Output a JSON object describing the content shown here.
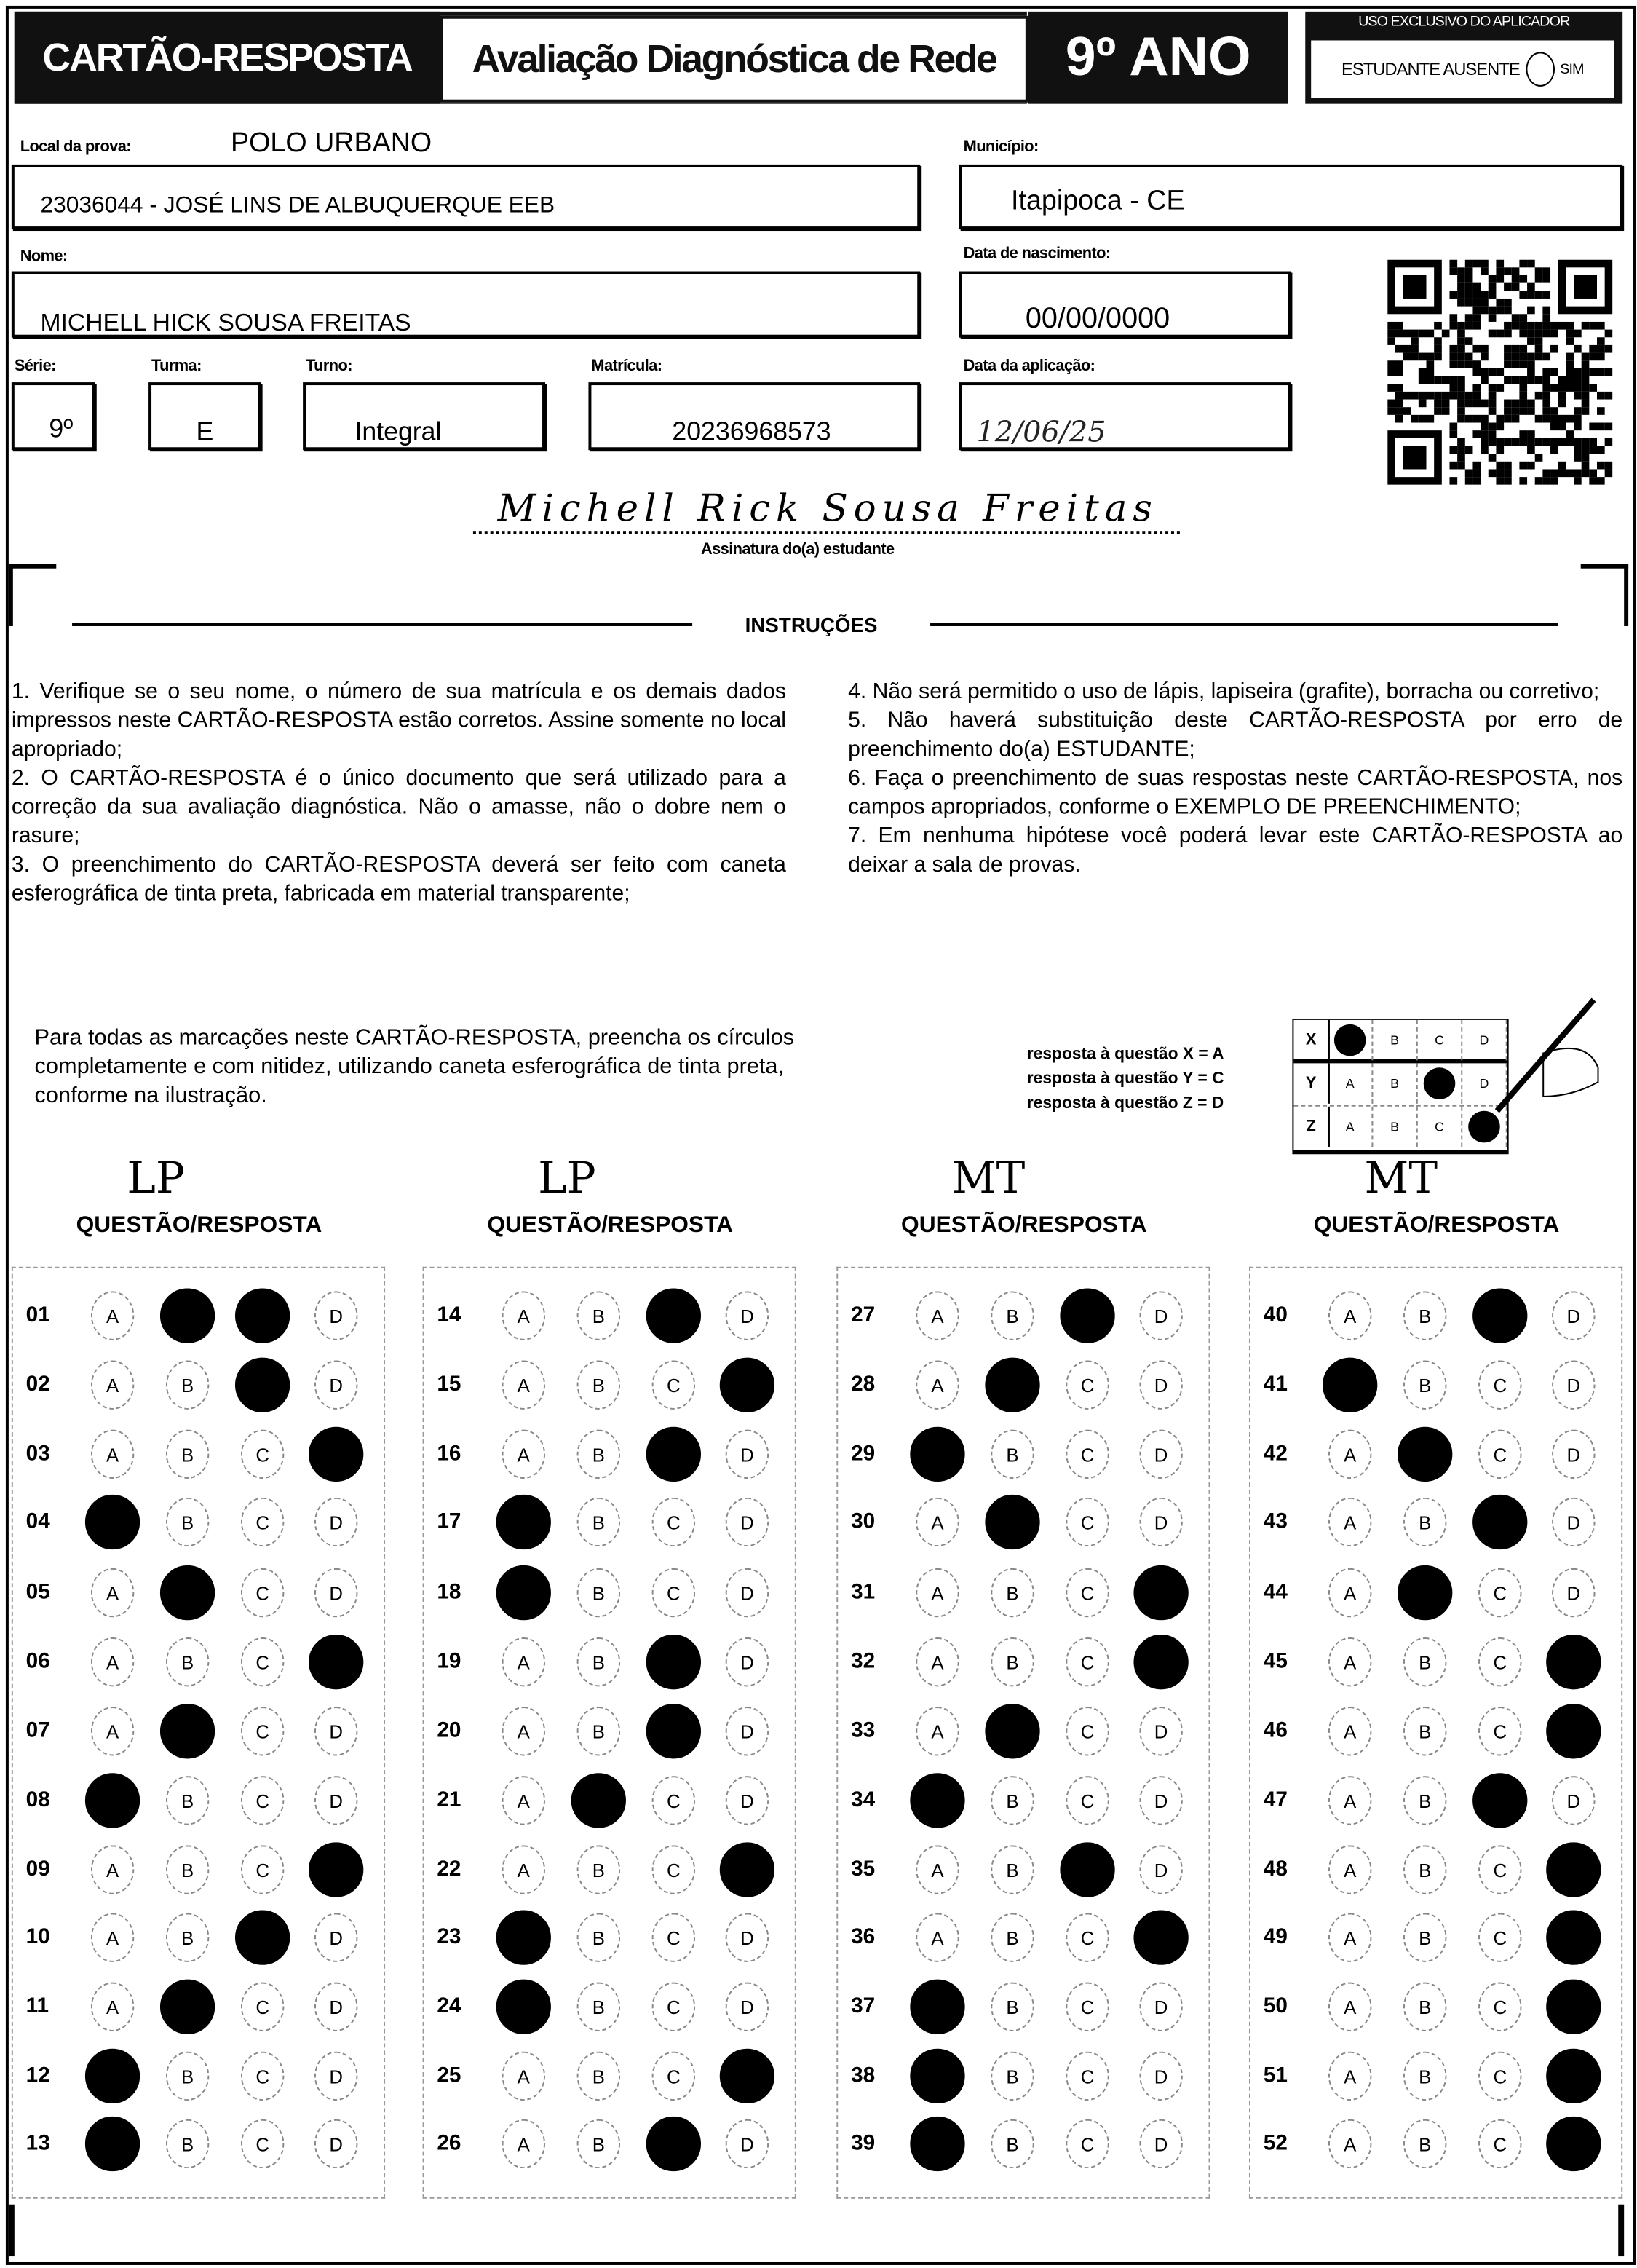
{
  "header": {
    "card_title": "CARTÃO-RESPOSTA",
    "exam_title": "Avaliação Diagnóstica de Rede",
    "grade": "9º ANO",
    "applicator_label": "USO EXCLUSIVO DO APLICADOR",
    "absent_label": "ESTUDANTE AUSENTE",
    "absent_option": "SIM"
  },
  "fields": {
    "local_label": "Local da prova:",
    "local_value": "POLO URBANO",
    "school": "23036044 - JOSÉ LINS DE ALBUQUERQUE EEB",
    "municipio_label": "Município:",
    "municipio": "Itapipoca - CE",
    "nome_label": "Nome:",
    "nome": "MICHELL HICK SOUSA FREITAS",
    "nascimento_label": "Data de nascimento:",
    "nascimento": "00/00/0000",
    "serie_label": "Série:",
    "serie": "9º",
    "turma_label": "Turma:",
    "turma": "E",
    "turno_label": "Turno:",
    "turno": "Integral",
    "matricula_label": "Matrícula:",
    "matricula": "20236968573",
    "aplicacao_label": "Data da aplicação:",
    "aplicacao": "12/06/25"
  },
  "signature": {
    "text": "Michell Rick Sousa Freitas",
    "label": "Assinatura do(a) estudante"
  },
  "instructions": {
    "title": "INSTRUÇÕES",
    "left": [
      "1. Verifique se o seu nome, o número de sua matrícula e os demais dados impressos neste CARTÃO-RESPOSTA estão corretos. Assine somente no local apropriado;",
      "2. O CARTÃO-RESPOSTA é o único documento que será utilizado para a correção da sua avaliação diagnóstica. Não o amasse, não o dobre nem o rasure;",
      "3. O preenchimento do CARTÃO-RESPOSTA deverá ser feito com caneta esferográfica de tinta preta, fabricada em material transparente;"
    ],
    "right": [
      "4. Não será permitido o uso de lápis, lapiseira (grafite), borracha ou corretivo;",
      "5. Não haverá substituição deste CARTÃO-RESPOSTA por erro de preenchimento do(a) ESTUDANTE;",
      "6. Faça o preenchimento de suas respostas neste CARTÃO-RESPOSTA, nos campos apropriados, conforme o EXEMPLO DE PREENCHIMENTO;",
      "7. Em nenhuma hipótese você poderá levar este CARTÃO-RESPOSTA ao deixar a sala de provas."
    ]
  },
  "example": {
    "text": "Para todas as marcações neste CARTÃO-RESPOSTA, preencha os círculos completamente e com nitidez, utilizando caneta esferográfica de tinta preta, conforme na ilustração.",
    "legend": [
      "resposta à questão X = A",
      "resposta à questão Y = C",
      "resposta à questão Z = D"
    ],
    "rows": [
      {
        "label": "X",
        "marked": "A"
      },
      {
        "label": "Y",
        "marked": "C"
      },
      {
        "label": "Z",
        "marked": "D"
      }
    ]
  },
  "options": [
    "A",
    "B",
    "C",
    "D"
  ],
  "columns": [
    {
      "subject": "LP",
      "header": "QUESTÃO/RESPOSTA",
      "questions": [
        {
          "n": "01",
          "marked": [
            "B",
            "C"
          ]
        },
        {
          "n": "02",
          "marked": [
            "C"
          ]
        },
        {
          "n": "03",
          "marked": [
            "D"
          ]
        },
        {
          "n": "04",
          "marked": [
            "A"
          ]
        },
        {
          "n": "05",
          "marked": [
            "B"
          ]
        },
        {
          "n": "06",
          "marked": [
            "D"
          ]
        },
        {
          "n": "07",
          "marked": [
            "B"
          ]
        },
        {
          "n": "08",
          "marked": [
            "A"
          ]
        },
        {
          "n": "09",
          "marked": [
            "D"
          ]
        },
        {
          "n": "10",
          "marked": [
            "C"
          ]
        },
        {
          "n": "11",
          "marked": [
            "B"
          ]
        },
        {
          "n": "12",
          "marked": [
            "A"
          ]
        },
        {
          "n": "13",
          "marked": [
            "A"
          ]
        }
      ]
    },
    {
      "subject": "LP",
      "header": "QUESTÃO/RESPOSTA",
      "questions": [
        {
          "n": "14",
          "marked": [
            "C"
          ]
        },
        {
          "n": "15",
          "marked": [
            "D"
          ]
        },
        {
          "n": "16",
          "marked": [
            "C"
          ]
        },
        {
          "n": "17",
          "marked": [
            "A"
          ]
        },
        {
          "n": "18",
          "marked": [
            "A"
          ]
        },
        {
          "n": "19",
          "marked": [
            "C"
          ]
        },
        {
          "n": "20",
          "marked": [
            "C"
          ]
        },
        {
          "n": "21",
          "marked": [
            "B"
          ]
        },
        {
          "n": "22",
          "marked": [
            "D"
          ]
        },
        {
          "n": "23",
          "marked": [
            "A"
          ]
        },
        {
          "n": "24",
          "marked": [
            "A"
          ]
        },
        {
          "n": "25",
          "marked": [
            "D"
          ]
        },
        {
          "n": "26",
          "marked": [
            "C"
          ]
        }
      ]
    },
    {
      "subject": "MT",
      "header": "QUESTÃO/RESPOSTA",
      "questions": [
        {
          "n": "27",
          "marked": [
            "C"
          ]
        },
        {
          "n": "28",
          "marked": [
            "B"
          ]
        },
        {
          "n": "29",
          "marked": [
            "A"
          ]
        },
        {
          "n": "30",
          "marked": [
            "B"
          ]
        },
        {
          "n": "31",
          "marked": [
            "D"
          ]
        },
        {
          "n": "32",
          "marked": [
            "D"
          ]
        },
        {
          "n": "33",
          "marked": [
            "B"
          ]
        },
        {
          "n": "34",
          "marked": [
            "A"
          ]
        },
        {
          "n": "35",
          "marked": [
            "C"
          ]
        },
        {
          "n": "36",
          "marked": [
            "D"
          ]
        },
        {
          "n": "37",
          "marked": [
            "A"
          ]
        },
        {
          "n": "38",
          "marked": [
            "A"
          ]
        },
        {
          "n": "39",
          "marked": [
            "A"
          ]
        }
      ]
    },
    {
      "subject": "MT",
      "header": "QUESTÃO/RESPOSTA",
      "questions": [
        {
          "n": "40",
          "marked": [
            "C"
          ]
        },
        {
          "n": "41",
          "marked": [
            "A"
          ]
        },
        {
          "n": "42",
          "marked": [
            "B"
          ]
        },
        {
          "n": "43",
          "marked": [
            "C"
          ]
        },
        {
          "n": "44",
          "marked": [
            "B"
          ]
        },
        {
          "n": "45",
          "marked": [
            "D"
          ]
        },
        {
          "n": "46",
          "marked": [
            "D"
          ]
        },
        {
          "n": "47",
          "marked": [
            "C"
          ]
        },
        {
          "n": "48",
          "marked": [
            "D"
          ]
        },
        {
          "n": "49",
          "marked": [
            "D"
          ]
        },
        {
          "n": "50",
          "marked": [
            "D"
          ]
        },
        {
          "n": "51",
          "marked": [
            "D"
          ]
        },
        {
          "n": "52",
          "marked": [
            "D"
          ]
        }
      ]
    }
  ]
}
